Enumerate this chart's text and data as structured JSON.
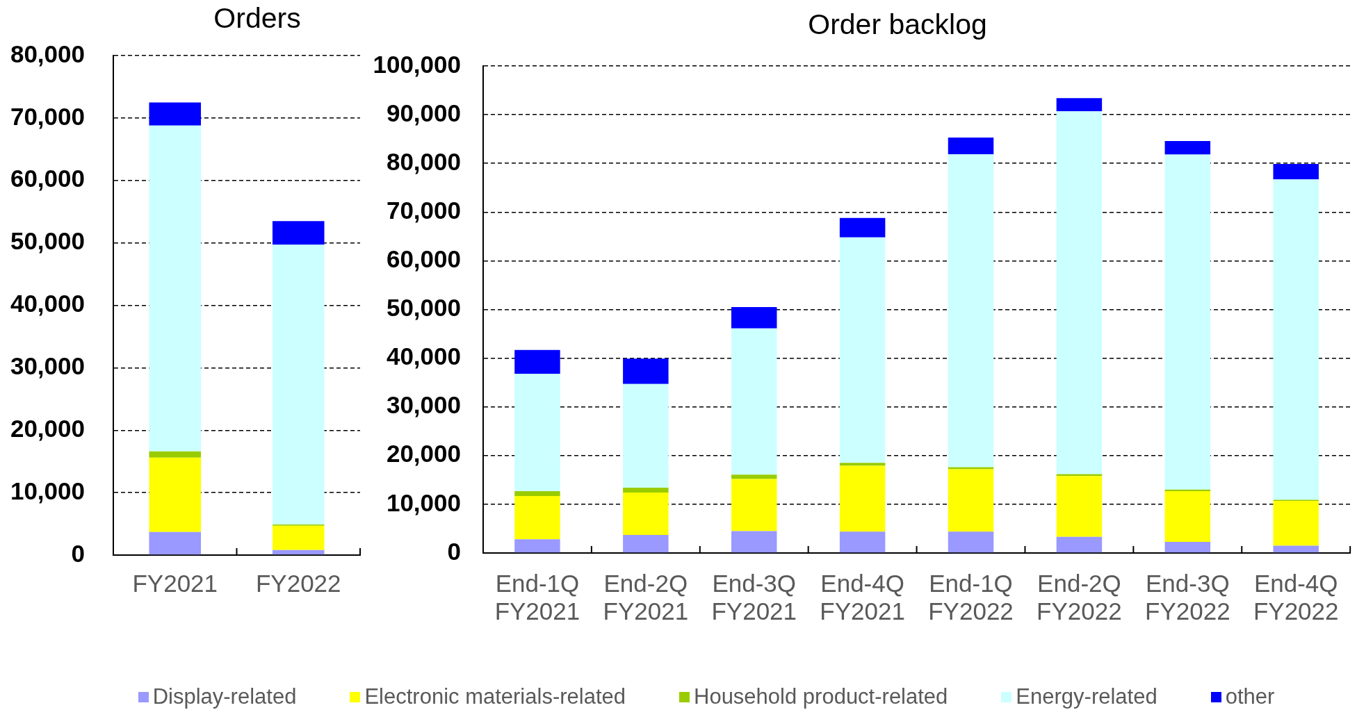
{
  "chart_data": [
    {
      "type": "bar",
      "title": "Orders",
      "categories": [
        "FY2021",
        "FY2022"
      ],
      "stacked": true,
      "series": [
        {
          "name": "Display-related",
          "color": "#9999ff",
          "values": [
            3700,
            800
          ]
        },
        {
          "name": "Electronic materials-related",
          "color": "#ffff00",
          "values": [
            11900,
            3900
          ]
        },
        {
          "name": "Household product-related",
          "color": "#99cc00",
          "values": [
            1000,
            200
          ]
        },
        {
          "name": "Energy-related",
          "color": "#ccffff",
          "values": [
            52200,
            44800
          ]
        },
        {
          "name": "other",
          "color": "#0000ff",
          "values": [
            3700,
            3800
          ]
        }
      ],
      "ylim": [
        0,
        80000
      ],
      "yticks": [
        {
          "value": 0,
          "label": "0"
        },
        {
          "value": 10000,
          "label": "10,000"
        },
        {
          "value": 20000,
          "label": "20,000"
        },
        {
          "value": 30000,
          "label": "30,000"
        },
        {
          "value": 40000,
          "label": "40,000"
        },
        {
          "value": 50000,
          "label": "50,000"
        },
        {
          "value": 60000,
          "label": "60,000"
        },
        {
          "value": 70000,
          "label": "70,000"
        },
        {
          "value": 80000,
          "label": "80,000"
        }
      ],
      "grid": "y",
      "legend": "bottom"
    },
    {
      "type": "bar",
      "title": "Order backlog",
      "categories": [
        "End-1Q FY2021",
        "End-2Q FY2021",
        "End-3Q FY2021",
        "End-4Q FY2021",
        "End-1Q FY2022",
        "End-2Q FY2022",
        "End-3Q FY2022",
        "End-4Q FY2022"
      ],
      "stacked": true,
      "series": [
        {
          "name": "Display-related",
          "color": "#9999ff",
          "values": [
            2800,
            3700,
            4500,
            4400,
            4400,
            3300,
            2300,
            1500
          ]
        },
        {
          "name": "Electronic materials-related",
          "color": "#ffff00",
          "values": [
            8900,
            8700,
            10700,
            13500,
            12800,
            12500,
            10400,
            9200
          ]
        },
        {
          "name": "Household product-related",
          "color": "#99cc00",
          "values": [
            1000,
            1000,
            900,
            600,
            400,
            400,
            300,
            200
          ]
        },
        {
          "name": "Energy-related",
          "color": "#ccffff",
          "values": [
            24100,
            21300,
            30000,
            46300,
            64300,
            74500,
            68800,
            65800
          ]
        },
        {
          "name": "other",
          "color": "#0000ff",
          "values": [
            4900,
            5200,
            4400,
            4000,
            3400,
            2700,
            2800,
            3200
          ]
        }
      ],
      "ylim": [
        0,
        100000
      ],
      "yticks": [
        {
          "value": 0,
          "label": "0"
        },
        {
          "value": 10000,
          "label": "10,000"
        },
        {
          "value": 20000,
          "label": "20,000"
        },
        {
          "value": 30000,
          "label": "30,000"
        },
        {
          "value": 40000,
          "label": "40,000"
        },
        {
          "value": 50000,
          "label": "50,000"
        },
        {
          "value": 60000,
          "label": "60,000"
        },
        {
          "value": 70000,
          "label": "70,000"
        },
        {
          "value": 80000,
          "label": "80,000"
        },
        {
          "value": 90000,
          "label": "90,000"
        },
        {
          "value": 100000,
          "label": "100,000"
        }
      ],
      "grid": "y",
      "legend": "bottom"
    }
  ]
}
